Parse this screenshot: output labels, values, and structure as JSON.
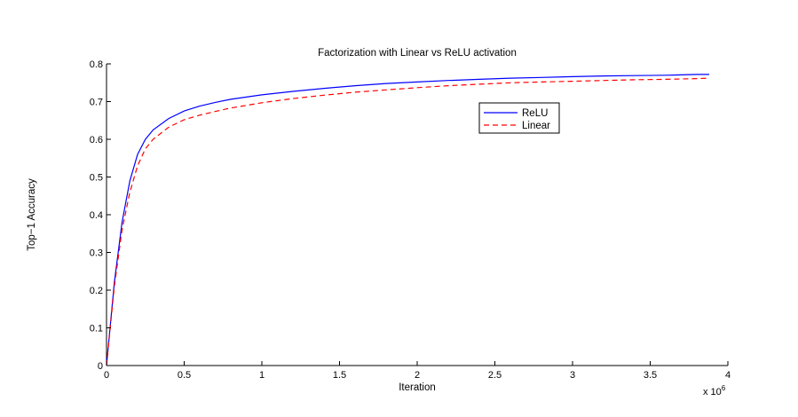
{
  "chart_data": {
    "type": "line",
    "title": "Factorization with Linear vs ReLU activation",
    "xlabel": "Iteration",
    "ylabel": "Top−1 Accuracy",
    "x_exponent_label": "x 10",
    "x_exponent_power": "6",
    "xlim": [
      0,
      4
    ],
    "ylim": [
      0,
      0.8
    ],
    "x_ticks": [
      "0",
      "0.5",
      "1",
      "1.5",
      "2",
      "2.5",
      "3",
      "3.5",
      "4"
    ],
    "y_ticks": [
      "0",
      "0.1",
      "0.2",
      "0.3",
      "0.4",
      "0.5",
      "0.6",
      "0.7",
      "0.8"
    ],
    "grid": false,
    "legend_position": "upper-right-center",
    "series": [
      {
        "name": "ReLU",
        "color": "#0000ff",
        "line_style": "solid",
        "x": [
          0,
          0.05,
          0.1,
          0.15,
          0.2,
          0.25,
          0.3,
          0.4,
          0.5,
          0.6,
          0.7,
          0.8,
          0.9,
          1.0,
          1.2,
          1.4,
          1.6,
          1.8,
          2.0,
          2.2,
          2.4,
          2.6,
          2.8,
          3.0,
          3.2,
          3.4,
          3.6,
          3.8,
          3.88
        ],
        "y": [
          0,
          0.22,
          0.38,
          0.49,
          0.56,
          0.6,
          0.625,
          0.655,
          0.675,
          0.688,
          0.698,
          0.706,
          0.712,
          0.718,
          0.727,
          0.735,
          0.742,
          0.748,
          0.752,
          0.756,
          0.759,
          0.762,
          0.764,
          0.766,
          0.768,
          0.769,
          0.77,
          0.772,
          0.772
        ]
      },
      {
        "name": "Linear",
        "color": "#ff0000",
        "line_style": "dashed",
        "x": [
          0,
          0.05,
          0.1,
          0.15,
          0.2,
          0.25,
          0.3,
          0.4,
          0.5,
          0.6,
          0.7,
          0.8,
          0.9,
          1.0,
          1.2,
          1.4,
          1.6,
          1.8,
          2.0,
          2.2,
          2.4,
          2.6,
          2.8,
          3.0,
          3.2,
          3.4,
          3.6,
          3.8,
          3.88
        ],
        "y": [
          0,
          0.21,
          0.36,
          0.46,
          0.53,
          0.575,
          0.6,
          0.632,
          0.652,
          0.664,
          0.674,
          0.683,
          0.69,
          0.697,
          0.708,
          0.717,
          0.725,
          0.731,
          0.737,
          0.742,
          0.746,
          0.75,
          0.752,
          0.754,
          0.756,
          0.758,
          0.759,
          0.761,
          0.762
        ]
      }
    ]
  }
}
